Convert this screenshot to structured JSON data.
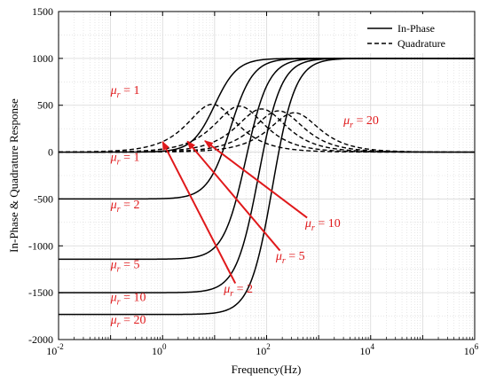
{
  "chart_data": {
    "type": "line",
    "title": "",
    "xlabel": "Frequency(Hz)",
    "ylabel": "In-Phase & Quadrature Response",
    "xscale": "log",
    "xlim": [
      0.01,
      1000000
    ],
    "ylim": [
      -2000,
      1500
    ],
    "grid": true,
    "legend_position": "top-right",
    "x_ticks": [
      {
        "value": 0.01,
        "base": "10",
        "exp": "-2"
      },
      {
        "value": 1,
        "base": "10",
        "exp": "0"
      },
      {
        "value": 100,
        "base": "10",
        "exp": "2"
      },
      {
        "value": 10000,
        "base": "10",
        "exp": "4"
      },
      {
        "value": 1000000,
        "base": "10",
        "exp": "6"
      }
    ],
    "y_ticks": [
      {
        "value": -2000,
        "label": "-2000"
      },
      {
        "value": -1500,
        "label": "-1500"
      },
      {
        "value": -1000,
        "label": "-1000"
      },
      {
        "value": -500,
        "label": "-500"
      },
      {
        "value": 0,
        "label": "0"
      },
      {
        "value": 500,
        "label": "500"
      },
      {
        "value": 1000,
        "label": "1000"
      },
      {
        "value": 1500,
        "label": "1500"
      }
    ],
    "legend": [
      {
        "label": "In-Phase",
        "style": "solid"
      },
      {
        "label": "Quadrature",
        "style": "dashed"
      }
    ],
    "curve_params": [
      {
        "mu_r": 1,
        "low": 0,
        "fc": 10
      },
      {
        "mu_r": 2,
        "low": -500,
        "fc": 20
      },
      {
        "mu_r": 5,
        "low": -1143,
        "fc": 40
      },
      {
        "mu_r": 10,
        "low": -1500,
        "fc": 70
      },
      {
        "mu_r": 20,
        "low": -1732,
        "fc": 130
      }
    ],
    "quadrature_peaks": [
      {
        "mu_r": 1,
        "freq": 9,
        "value": 510
      },
      {
        "mu_r": 2,
        "freq": 30,
        "value": 490
      },
      {
        "mu_r": 5,
        "freq": 80,
        "value": 460
      },
      {
        "mu_r": 10,
        "freq": 170,
        "value": 440
      },
      {
        "mu_r": 20,
        "freq": 340,
        "value": 420
      }
    ],
    "series": [
      {
        "style": "solid",
        "x": [
          0.01,
          0.1,
          1,
          3,
          10,
          30,
          100,
          1000,
          10000,
          1000000
        ],
        "y": [
          0,
          0,
          10,
          40,
          230,
          650,
          920,
          995,
          1000,
          1000
        ]
      },
      {
        "style": "solid",
        "x": [
          0.01,
          0.1,
          1,
          3,
          10,
          30,
          100,
          1000,
          10000,
          1000000
        ],
        "y": [
          -500,
          -500,
          -495,
          -470,
          -320,
          170,
          740,
          985,
          999,
          1000
        ]
      },
      {
        "style": "solid",
        "x": [
          0.01,
          0.1,
          1,
          3,
          10,
          30,
          100,
          1000,
          10000,
          1000000
        ],
        "y": [
          -1143,
          -1143,
          -1140,
          -1120,
          -980,
          -420,
          500,
          970,
          998,
          1000
        ]
      },
      {
        "style": "solid",
        "x": [
          0.01,
          0.1,
          1,
          3,
          10,
          30,
          100,
          1000,
          10000,
          1000000
        ],
        "y": [
          -1500,
          -1500,
          -1497,
          -1490,
          -1400,
          -1000,
          150,
          940,
          996,
          1000
        ]
      },
      {
        "style": "solid",
        "x": [
          0.01,
          0.1,
          1,
          3,
          10,
          30,
          100,
          1000,
          10000,
          1000000
        ],
        "y": [
          -1732,
          -1732,
          -1730,
          -1725,
          -1680,
          -1450,
          -400,
          880,
          990,
          1000
        ]
      },
      {
        "style": "dashed",
        "x": [
          0.01,
          0.1,
          1,
          3,
          10,
          30,
          100,
          1000,
          1000000
        ],
        "y": [
          0,
          2,
          110,
          310,
          510,
          390,
          180,
          30,
          0
        ]
      },
      {
        "style": "dashed",
        "x": [
          0.01,
          0.1,
          1,
          3,
          10,
          30,
          100,
          1000,
          1000000
        ],
        "y": [
          0,
          1,
          40,
          150,
          390,
          490,
          320,
          60,
          0
        ]
      },
      {
        "style": "dashed",
        "x": [
          0.01,
          0.1,
          1,
          3,
          10,
          30,
          100,
          1000,
          1000000
        ],
        "y": [
          0,
          0,
          15,
          60,
          220,
          420,
          440,
          110,
          0
        ]
      },
      {
        "style": "dashed",
        "x": [
          0.01,
          0.1,
          1,
          3,
          10,
          30,
          100,
          1000,
          1000000
        ],
        "y": [
          0,
          0,
          6,
          25,
          110,
          300,
          440,
          200,
          0
        ]
      },
      {
        "style": "dashed",
        "x": [
          0.01,
          0.1,
          1,
          3,
          10,
          30,
          100,
          1000,
          1000000
        ],
        "y": [
          0,
          0,
          3,
          12,
          55,
          180,
          380,
          330,
          0
        ]
      }
    ],
    "annotations": [
      {
        "sym": "μ",
        "sub": "r",
        "rest": " = 1",
        "x": 0.1,
        "y": 620
      },
      {
        "sym": "μ",
        "sub": "r",
        "rest": " = 20",
        "x": 3000,
        "y": 300
      },
      {
        "sym": "μ",
        "sub": "r",
        "rest": " = 1",
        "x": 0.1,
        "y": -95
      },
      {
        "sym": "μ",
        "sub": "r",
        "rest": " = 2",
        "x": 0.1,
        "y": -600
      },
      {
        "sym": "μ",
        "sub": "r",
        "rest": " = 5",
        "x": 0.1,
        "y": -1240
      },
      {
        "sym": "μ",
        "sub": "r",
        "rest": " = 10",
        "x": 0.1,
        "y": -1590
      },
      {
        "sym": "μ",
        "sub": "r",
        "rest": " = 20",
        "x": 0.1,
        "y": -1830
      },
      {
        "sym": "μ",
        "sub": "r",
        "rest": " = 10",
        "x": 550,
        "y": -800
      },
      {
        "sym": "μ",
        "sub": "r",
        "rest": " = 5",
        "x": 150,
        "y": -1150
      },
      {
        "sym": "μ",
        "sub": "r",
        "rest": " = 2",
        "x": 15,
        "y": -1500
      }
    ],
    "arrows": [
      {
        "x1": 600,
        "y1": -700,
        "x2": 6.5,
        "y2": 120
      },
      {
        "x1": 180,
        "y1": -1050,
        "x2": 3.0,
        "y2": 115
      },
      {
        "x1": 25,
        "y1": -1400,
        "x2": 1.0,
        "y2": 110
      }
    ],
    "colors": {
      "curve": "#000000",
      "annotation": "#e0191b",
      "grid": "#d8d8d8"
    }
  }
}
